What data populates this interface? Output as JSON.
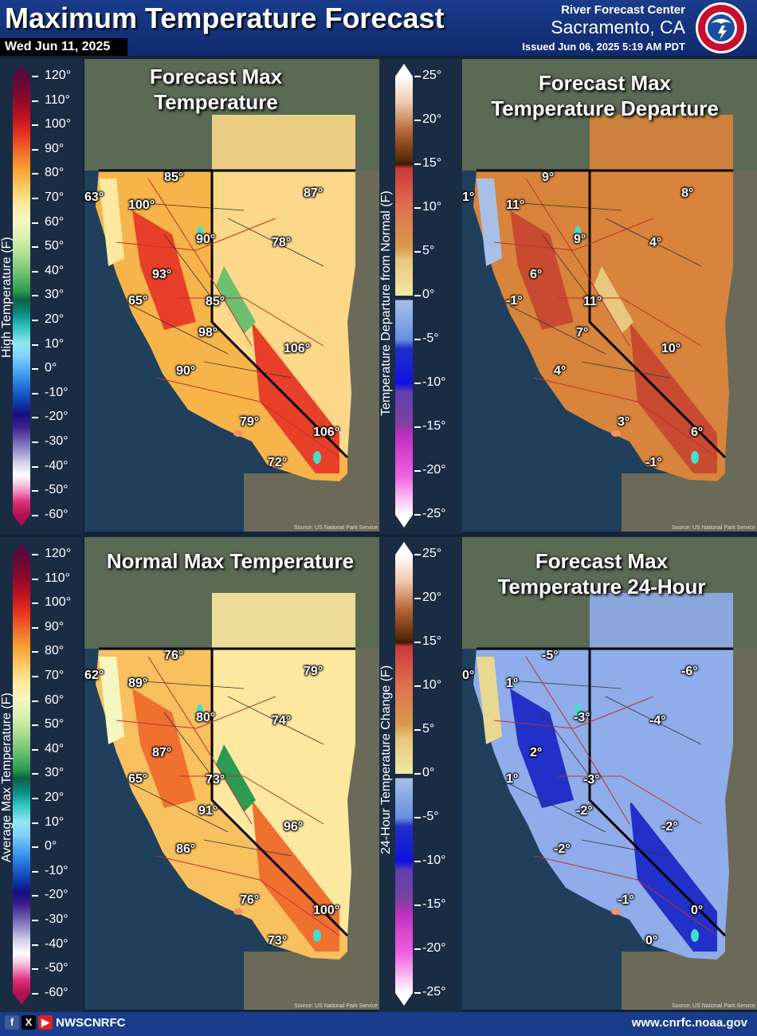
{
  "header": {
    "title": "Maximum Temperature Forecast",
    "date": "Wed Jun 11, 2025",
    "rfc_line1": "River Forecast Center",
    "rfc_line2": "Sacramento, CA",
    "issued": "Issued Jun 06, 2025 5:19 AM PDT",
    "logo_text": "NATIONAL WEATHER SERVICE"
  },
  "panels": {
    "forecast_max": {
      "title_line1": "Forecast Max",
      "title_line2": "Temperature",
      "source": "Source: US National Park Service",
      "labels": [
        "85°",
        "87°",
        "63°",
        "100°",
        "90°",
        "78°",
        "93°",
        "65°",
        "85°",
        "98°",
        "106°",
        "90°",
        "79°",
        "106°",
        "72°"
      ]
    },
    "departure": {
      "title_line1": "Forecast Max",
      "title_line2": "Temperature Departure",
      "source": "Source: US National Park Service",
      "labels": [
        "9°",
        "8°",
        "1°",
        "11°",
        "9°",
        "4°",
        "6°",
        "-1°",
        "11°",
        "7°",
        "10°",
        "4°",
        "3°",
        "6°",
        "-1°"
      ]
    },
    "normal_max": {
      "title_line1": "Normal Max Temperature",
      "source": "Source: US National Park Service",
      "labels": [
        "76°",
        "79°",
        "62°",
        "89°",
        "80°",
        "74°",
        "87°",
        "65°",
        "73°",
        "91°",
        "96°",
        "86°",
        "76°",
        "100°",
        "73°"
      ]
    },
    "change_24h": {
      "title_line1": "Forecast Max",
      "title_line2": "Temperature 24-Hour",
      "source": "Source: US National Park Service",
      "labels": [
        "-5°",
        "-6°",
        "0°",
        "1°",
        "-3°",
        "-4°",
        "2°",
        "1°",
        "-3°",
        "-2°",
        "-2°",
        "-2°",
        "-1°",
        "0°",
        "0°"
      ]
    }
  },
  "legends": {
    "temperature_top": {
      "title": "High Temperature (F)",
      "ticks": [
        "120°",
        "110°",
        "100°",
        "90°",
        "80°",
        "70°",
        "60°",
        "50°",
        "40°",
        "30°",
        "20°",
        "10°",
        "0°",
        "-10°",
        "-20°",
        "-30°",
        "-40°",
        "-50°",
        "-60°"
      ]
    },
    "departure_scale": {
      "title": "Temperature Departure from Normal (F)",
      "ticks": [
        "25°",
        "20°",
        "15°",
        "10°",
        "5°",
        "0°",
        "-5°",
        "-10°",
        "-15°",
        "-20°",
        "-25°"
      ]
    },
    "temperature_bottom": {
      "title": "Average Max Temperature (F)",
      "ticks": [
        "120°",
        "110°",
        "100°",
        "90°",
        "80°",
        "70°",
        "60°",
        "50°",
        "40°",
        "30°",
        "20°",
        "10°",
        "0°",
        "-10°",
        "-20°",
        "-30°",
        "-40°",
        "-50°",
        "-60°"
      ]
    },
    "change_scale": {
      "title": "24-Hour Temperature Change (F)",
      "ticks": [
        "25°",
        "20°",
        "15°",
        "10°",
        "5°",
        "0°",
        "-5°",
        "-10°",
        "-15°",
        "-20°",
        "-25°"
      ]
    }
  },
  "colors": {
    "temp_scale": [
      "#5a0a3a",
      "#8a0a2a",
      "#c01020",
      "#e53020",
      "#f26a2a",
      "#f7a030",
      "#fbc860",
      "#fde8a0",
      "#f6f6c0",
      "#d6f0b0",
      "#a8dc90",
      "#6cc070",
      "#2c9a50",
      "#106040",
      "#0a8a80",
      "#30c0c0",
      "#90e8f0",
      "#80d0f8",
      "#50a8f0",
      "#2a7ae0",
      "#1040b0",
      "#101080",
      "#402090",
      "#7060b0",
      "#a8a0d0",
      "#d0d0e8",
      "#ffffff",
      "#f8c8e0",
      "#f080b8",
      "#e03080",
      "#b01050"
    ],
    "dep_scale": [
      "#ffffff",
      "#f0c8b0",
      "#b06030",
      "#5a2a08",
      "#3a1800",
      "#c83a3a",
      "#e07050",
      "#d89a50",
      "#e8c880",
      "#f0e8a0",
      "#a8c0e8",
      "#6890e0",
      "#2030c8",
      "#1010e0",
      "#6040b0",
      "#8040a0",
      "#c030c0",
      "#f060e0",
      "#ffffff"
    ]
  },
  "footer": {
    "handle": "NWSCNRFC",
    "website": "www.cnrfc.noaa.gov"
  }
}
